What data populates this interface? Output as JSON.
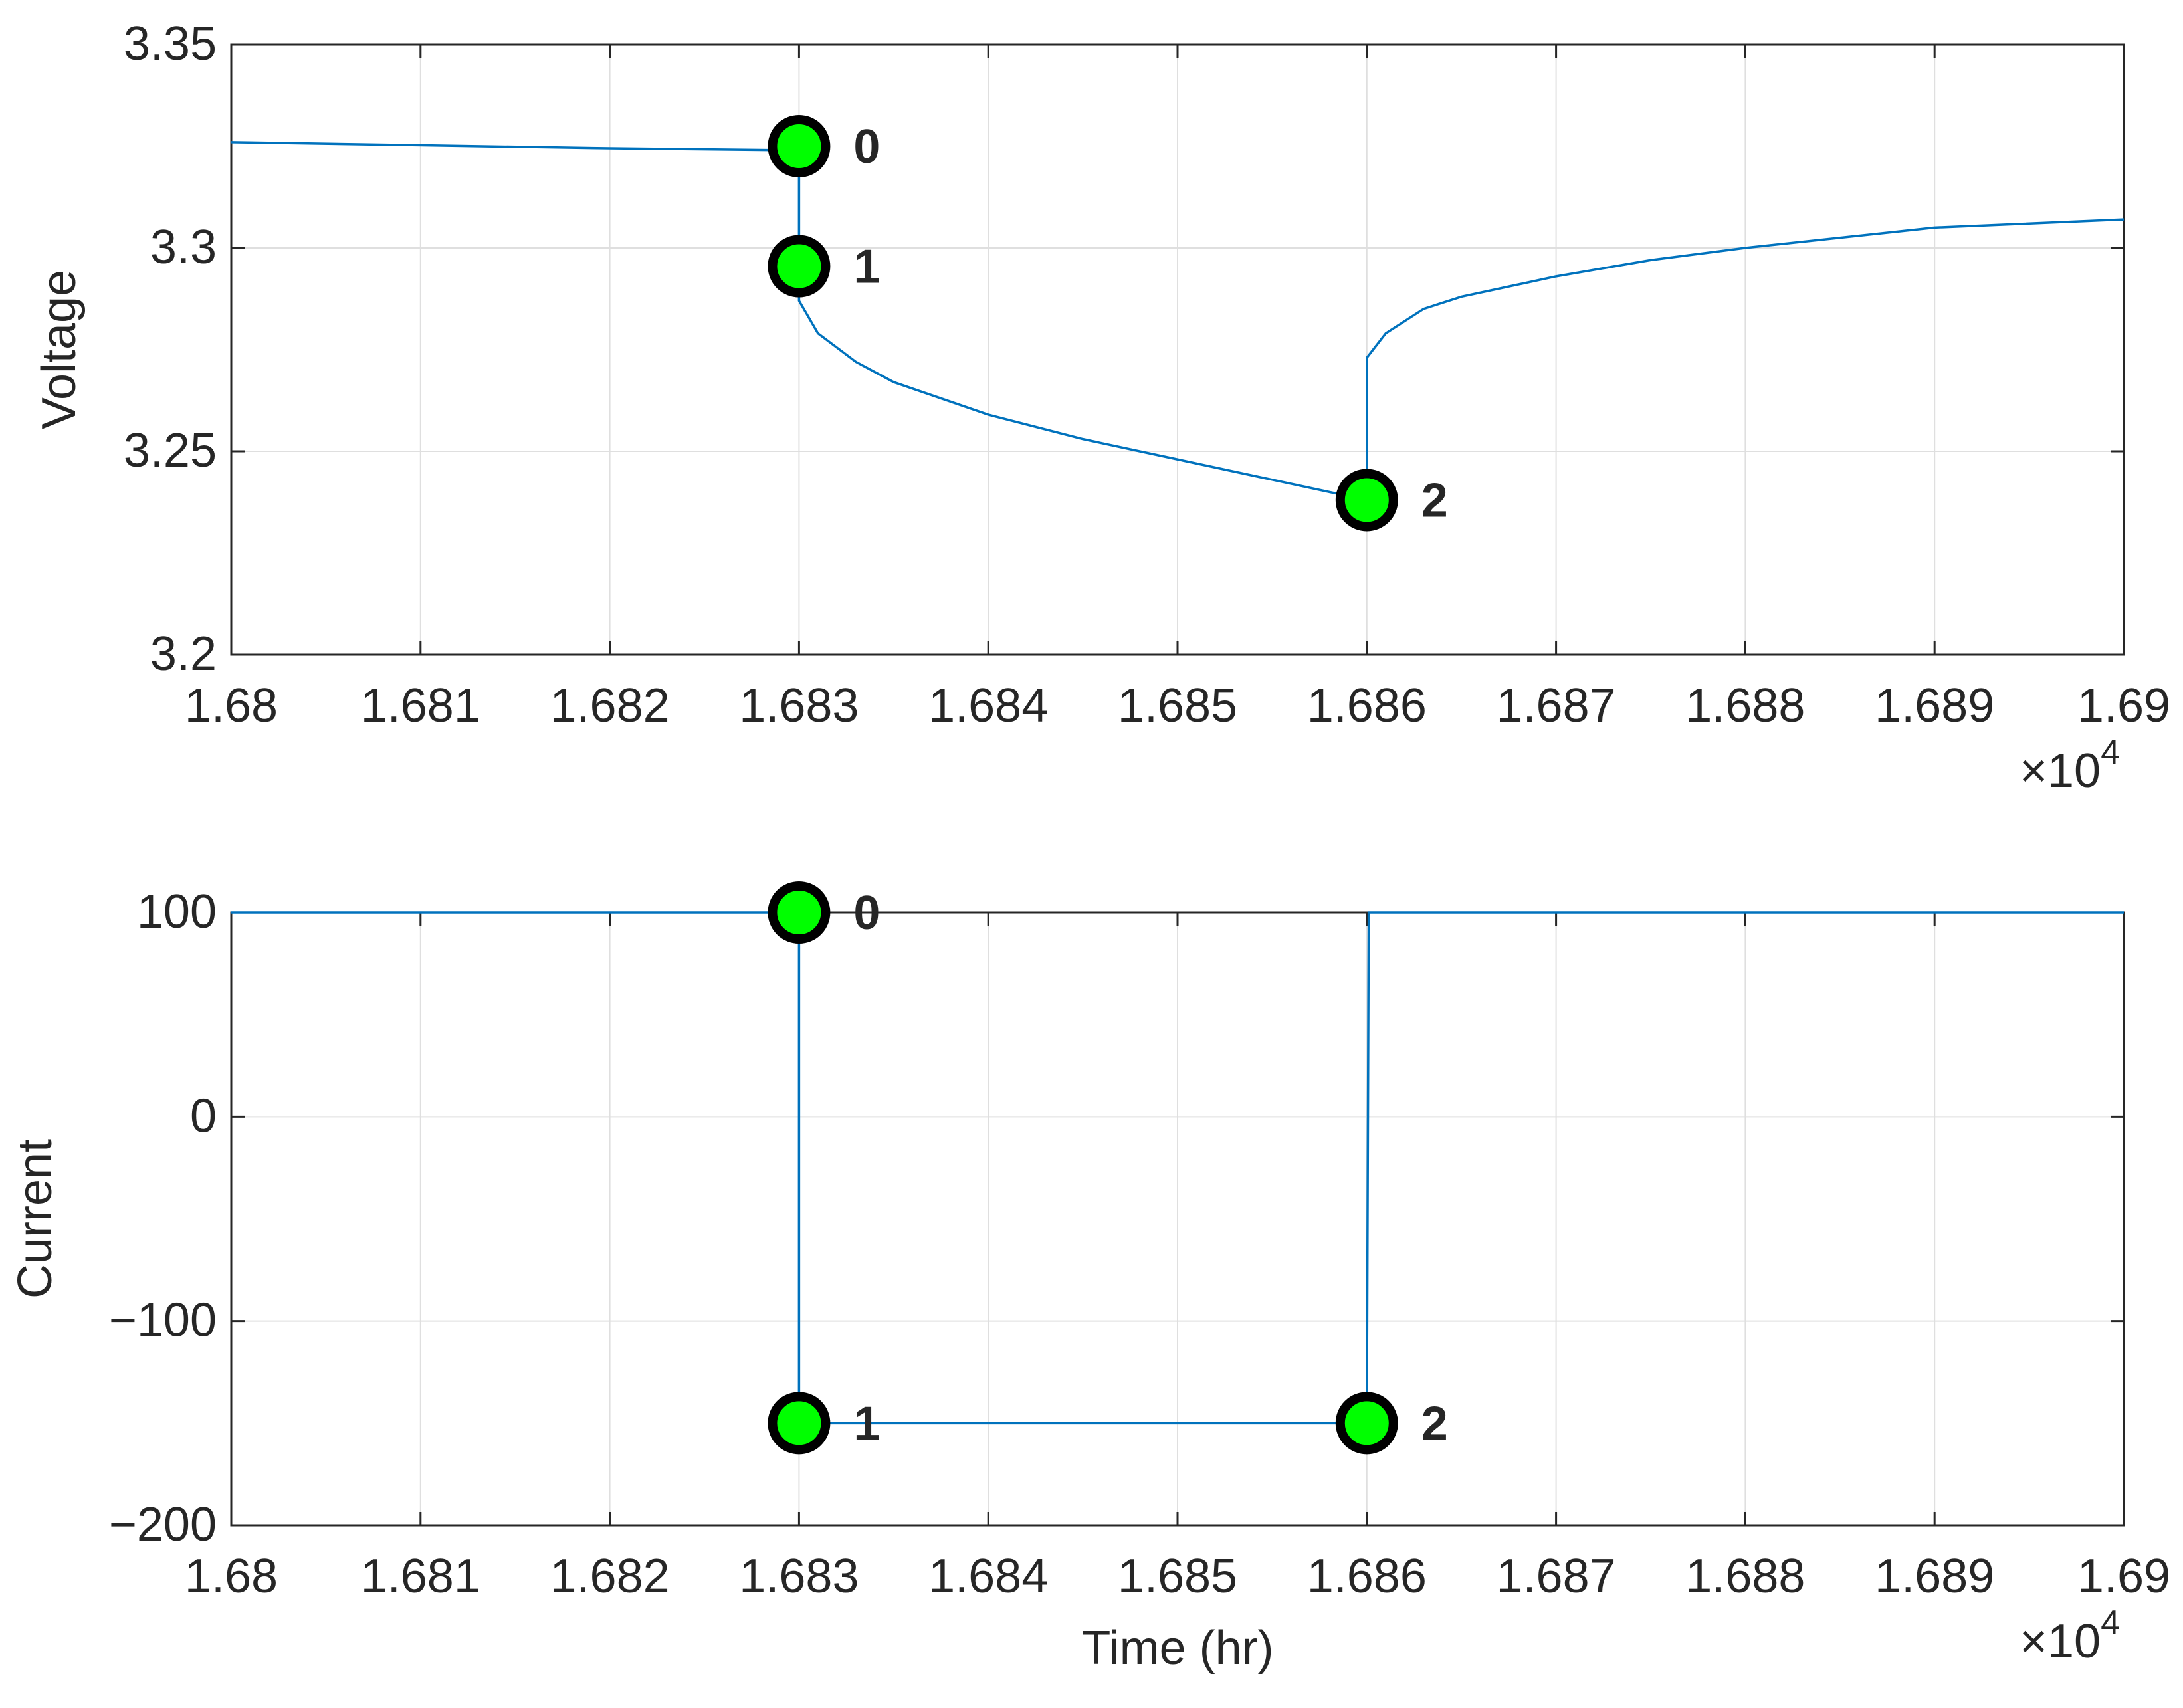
{
  "chart_data": [
    {
      "type": "line",
      "ylabel": "Voltage",
      "x": [
        1.68,
        1.682,
        1.683,
        1.683,
        1.683,
        1.6831,
        1.6833,
        1.6835,
        1.684,
        1.6845,
        1.685,
        1.6855,
        1.686,
        1.686,
        1.6861,
        1.6863,
        1.6865,
        1.687,
        1.6875,
        1.688,
        1.689,
        1.69
      ],
      "values": [
        3.326,
        3.3245,
        3.324,
        3.3,
        3.287,
        3.279,
        3.272,
        3.267,
        3.259,
        3.253,
        3.248,
        3.243,
        3.238,
        3.273,
        3.279,
        3.285,
        3.288,
        3.293,
        3.297,
        3.3,
        3.305,
        3.307
      ],
      "color": "#0072bd",
      "points": {
        "x": [
          1.683,
          1.683,
          1.686
        ],
        "values": [
          3.325,
          3.2955,
          3.238
        ],
        "labels": [
          "0",
          "1",
          "2"
        ],
        "color": "#00ff00"
      },
      "xlim": [
        1.68,
        1.69
      ],
      "xticks": [
        1.68,
        1.681,
        1.682,
        1.683,
        1.684,
        1.685,
        1.686,
        1.687,
        1.688,
        1.689,
        1.69
      ],
      "ylim": [
        3.2,
        3.35
      ],
      "yticks": [
        3.2,
        3.25,
        3.3,
        3.35
      ],
      "x_multiplier": "×10",
      "x_multiplier_exponent": "4",
      "grid": true
    },
    {
      "type": "line",
      "ylabel": "Current",
      "xlabel": "Time (hr)",
      "x": [
        1.68,
        1.683,
        1.683,
        1.686,
        1.68601,
        1.69
      ],
      "values": [
        100,
        100,
        -150,
        -150,
        100,
        100
      ],
      "color": "#0072bd",
      "points": {
        "x": [
          1.683,
          1.683,
          1.686
        ],
        "values": [
          100,
          -150,
          -150
        ],
        "labels": [
          "0",
          "1",
          "2"
        ],
        "color": "#00ff00"
      },
      "xlim": [
        1.68,
        1.69
      ],
      "xticks": [
        1.68,
        1.681,
        1.682,
        1.683,
        1.684,
        1.685,
        1.686,
        1.687,
        1.688,
        1.689,
        1.69
      ],
      "ylim": [
        -200,
        100
      ],
      "yticks": [
        {
          "value": -200,
          "label": "−200"
        },
        {
          "value": -100,
          "label": "−100"
        },
        0,
        100
      ],
      "x_multiplier": "×10",
      "x_multiplier_exponent": "4",
      "grid": true
    }
  ]
}
